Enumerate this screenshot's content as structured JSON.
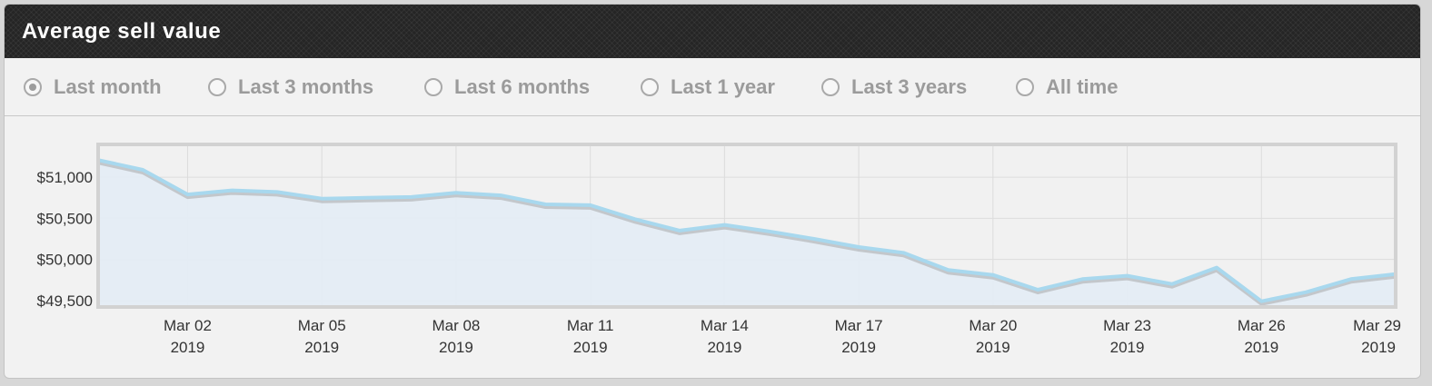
{
  "title": "Average sell value",
  "ranges": [
    {
      "label": "Last month",
      "selected": true
    },
    {
      "label": "Last 3 months",
      "selected": false
    },
    {
      "label": "Last 6 months",
      "selected": false
    },
    {
      "label": "Last 1 year",
      "selected": false
    },
    {
      "label": "Last 3 years",
      "selected": false
    },
    {
      "label": "All time",
      "selected": false
    }
  ],
  "colors": {
    "line": "#a8d8ee",
    "area": "#e4ecf4",
    "shadow": "#9a9a9a",
    "title_bg": "#252525"
  },
  "chart_data": {
    "type": "area",
    "title": "",
    "xlabel": "",
    "ylabel": "",
    "x_start": "2019-02-28",
    "x": [
      "2019-02-28",
      "2019-03-01",
      "2019-03-02",
      "2019-03-03",
      "2019-03-04",
      "2019-03-05",
      "2019-03-06",
      "2019-03-07",
      "2019-03-08",
      "2019-03-09",
      "2019-03-10",
      "2019-03-11",
      "2019-03-12",
      "2019-03-13",
      "2019-03-14",
      "2019-03-15",
      "2019-03-16",
      "2019-03-17",
      "2019-03-18",
      "2019-03-19",
      "2019-03-20",
      "2019-03-21",
      "2019-03-22",
      "2019-03-23",
      "2019-03-24",
      "2019-03-25",
      "2019-03-26",
      "2019-03-27",
      "2019-03-28",
      "2019-03-29"
    ],
    "values": [
      51210,
      51090,
      50790,
      50840,
      50820,
      50740,
      50750,
      50760,
      50810,
      50780,
      50670,
      50660,
      50490,
      50350,
      50420,
      50340,
      50250,
      50150,
      50080,
      49870,
      49810,
      49630,
      49760,
      49800,
      49700,
      49900,
      49490,
      49600,
      49760,
      49820
    ],
    "ylim": [
      49420,
      51400
    ],
    "y_ticks": [
      {
        "v": 51000,
        "label": "$51,000"
      },
      {
        "v": 50500,
        "label": "$50,500"
      },
      {
        "v": 50000,
        "label": "$50,000"
      },
      {
        "v": 49500,
        "label": "$49,500"
      }
    ],
    "x_ticks": [
      {
        "d": "2019-03-02",
        "label1": "Mar 02",
        "label2": "2019"
      },
      {
        "d": "2019-03-05",
        "label1": "Mar 05",
        "label2": "2019"
      },
      {
        "d": "2019-03-08",
        "label1": "Mar 08",
        "label2": "2019"
      },
      {
        "d": "2019-03-11",
        "label1": "Mar 11",
        "label2": "2019"
      },
      {
        "d": "2019-03-14",
        "label1": "Mar 14",
        "label2": "2019"
      },
      {
        "d": "2019-03-17",
        "label1": "Mar 17",
        "label2": "2019"
      },
      {
        "d": "2019-03-20",
        "label1": "Mar 20",
        "label2": "2019"
      },
      {
        "d": "2019-03-23",
        "label1": "Mar 23",
        "label2": "2019"
      },
      {
        "d": "2019-03-26",
        "label1": "Mar 26",
        "label2": "2019"
      },
      {
        "d": "2019-03-29",
        "label1": "Mar 29",
        "label2": "2019"
      }
    ],
    "grid": true,
    "legend": "none"
  }
}
